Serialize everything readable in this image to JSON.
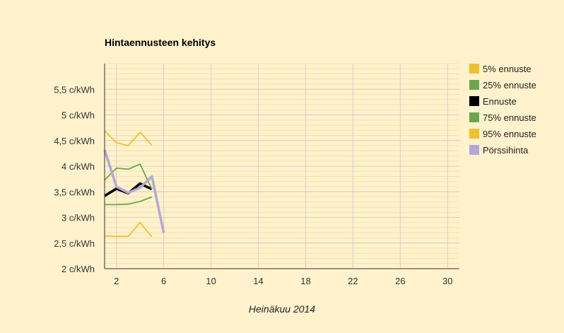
{
  "chart_data": {
    "type": "line",
    "title": "Hintaennusteen kehitys",
    "xlabel": "Heinäkuu 2014",
    "ylabel": "",
    "xlim": [
      1,
      31
    ],
    "ylim": [
      2,
      6
    ],
    "x_ticks": [
      2,
      6,
      10,
      14,
      18,
      22,
      26,
      30
    ],
    "y_ticks": [
      {
        "value": 2,
        "label": "2 c/kWh"
      },
      {
        "value": 2.5,
        "label": "2,5 c/kWh"
      },
      {
        "value": 3,
        "label": "3 c/kWh"
      },
      {
        "value": 3.5,
        "label": "3,5 c/kWh"
      },
      {
        "value": 4,
        "label": "4 c/kWh"
      },
      {
        "value": 4.5,
        "label": "4,5 c/kWh"
      },
      {
        "value": 5,
        "label": "5 c/kWh"
      },
      {
        "value": 5.5,
        "label": "5,5 c/kWh"
      }
    ],
    "grid": true,
    "legend_position": "right",
    "series": [
      {
        "name": "5% ennuste",
        "color": "#f0c030",
        "x": [
          1,
          2,
          3,
          4,
          5
        ],
        "y": [
          2.64,
          2.63,
          2.63,
          2.9,
          2.62
        ]
      },
      {
        "name": "25% ennuste",
        "color": "#6aa84f",
        "x": [
          1,
          2,
          3,
          4,
          5
        ],
        "y": [
          3.25,
          3.25,
          3.26,
          3.31,
          3.4
        ]
      },
      {
        "name": "Ennuste",
        "color": "#000000",
        "x": [
          1,
          2,
          3,
          4,
          5
        ],
        "y": [
          3.42,
          3.56,
          3.47,
          3.66,
          3.55
        ]
      },
      {
        "name": "75% ennuste",
        "color": "#6aa84f",
        "x": [
          1,
          2,
          3,
          4,
          5
        ],
        "y": [
          3.73,
          3.96,
          3.94,
          4.04,
          3.55
        ]
      },
      {
        "name": "95% ennuste",
        "color": "#f0c030",
        "x": [
          1,
          2,
          3,
          4,
          5
        ],
        "y": [
          4.69,
          4.46,
          4.4,
          4.66,
          4.41
        ]
      },
      {
        "name": "Pörssihinta",
        "color": "#b4a7d6",
        "x": [
          1,
          2,
          3,
          4,
          5,
          6
        ],
        "y": [
          4.32,
          3.6,
          3.48,
          3.58,
          3.8,
          2.7
        ]
      }
    ]
  }
}
